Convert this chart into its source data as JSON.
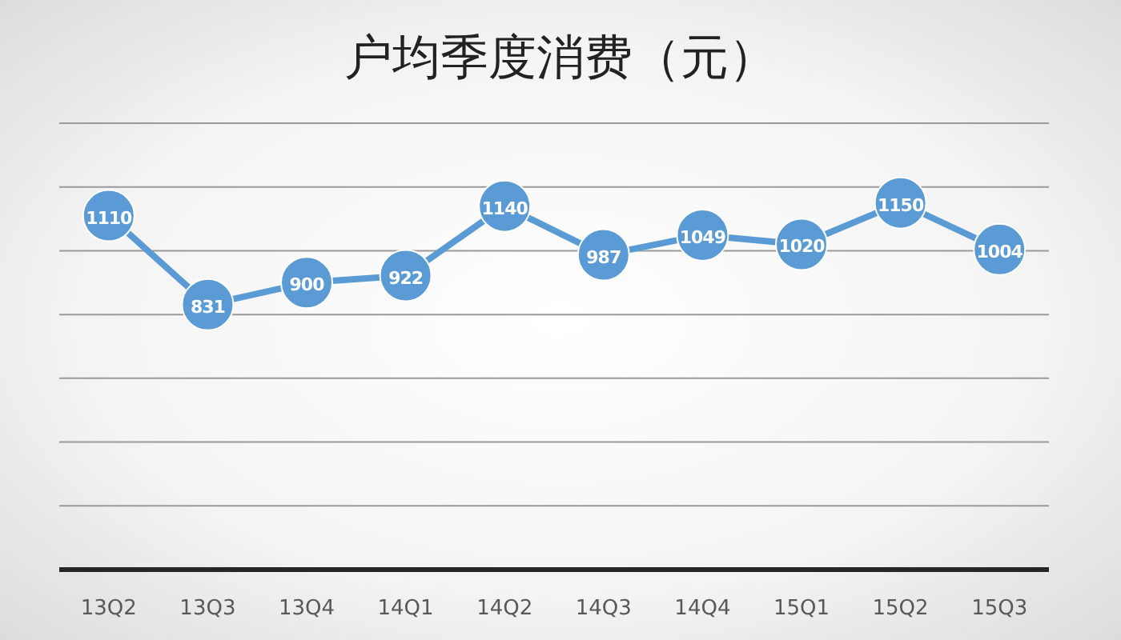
{
  "chart_data": {
    "type": "line",
    "title": "户均季度消费（元）",
    "categories": [
      "13Q2",
      "13Q3",
      "13Q4",
      "14Q1",
      "14Q2",
      "14Q3",
      "14Q4",
      "15Q1",
      "15Q2",
      "15Q3"
    ],
    "values": [
      1110,
      831,
      900,
      922,
      1140,
      987,
      1049,
      1020,
      1150,
      1004
    ],
    "color": "#5b9bd5",
    "marker": "circle",
    "data_labels": true,
    "grid": "y",
    "tick_labels": "x",
    "ylim": [
      0,
      1400
    ],
    "yticks": [
      {
        "value": 0,
        "label": null
      },
      {
        "value": 200,
        "label": null
      },
      {
        "value": 400,
        "label": null
      },
      {
        "value": 600,
        "label": null
      },
      {
        "value": 800,
        "label": null
      },
      {
        "value": 1000,
        "label": null
      },
      {
        "value": 1200,
        "label": null
      },
      {
        "value": 1400,
        "label": null
      }
    ]
  }
}
